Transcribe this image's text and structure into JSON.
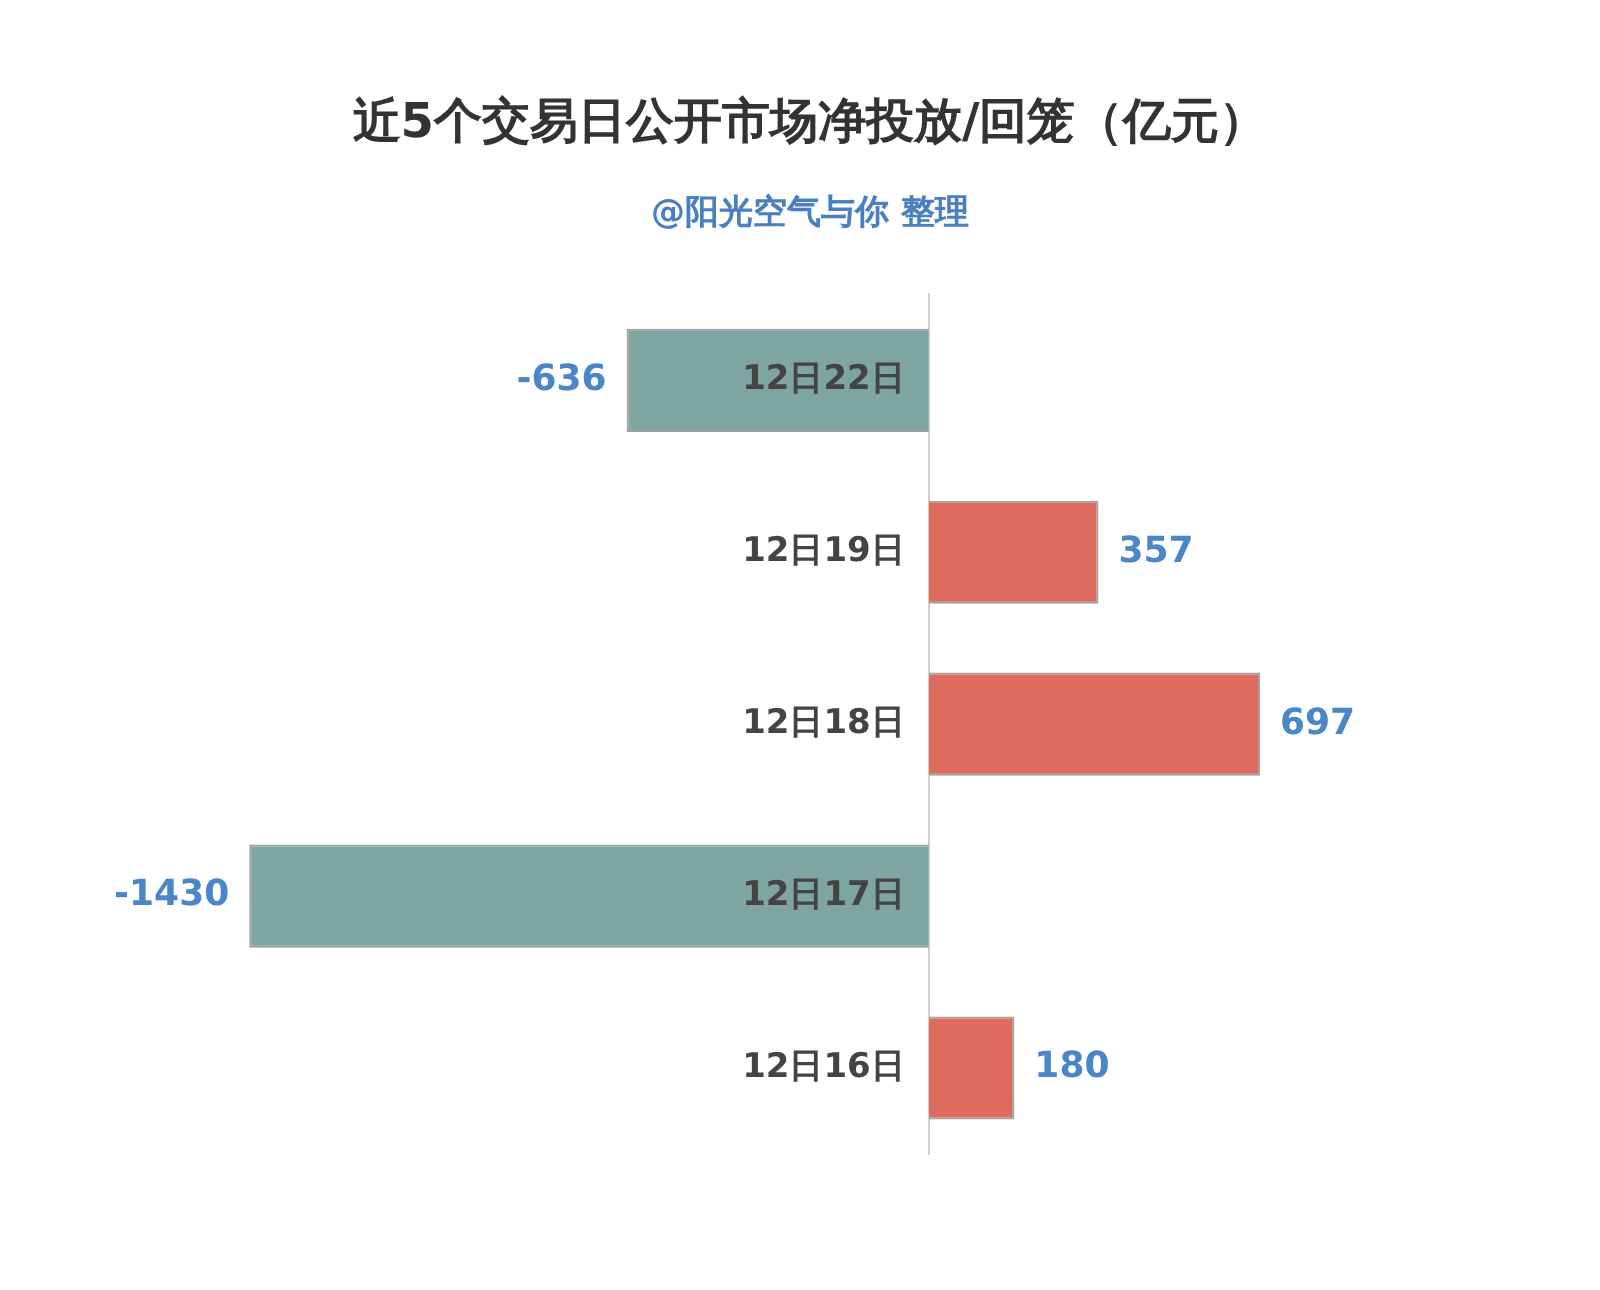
{
  "chart_data": {
    "type": "bar",
    "orientation": "horizontal",
    "title": "近5个交易日公开市场净投放/回笼（亿元）",
    "subtitle": "@阳光空气与你 整理",
    "categories": [
      "12日22日",
      "12日19日",
      "12日18日",
      "12日17日",
      "12日16日"
    ],
    "values": [
      -636,
      357,
      697,
      -1430,
      180
    ],
    "colors": [
      "#7fa5a1",
      "#dd6b5e",
      "#dd6b5e",
      "#7fa5a1",
      "#dd6b5e"
    ],
    "tick_labels": "y",
    "data_labels": true,
    "legend": false
  }
}
